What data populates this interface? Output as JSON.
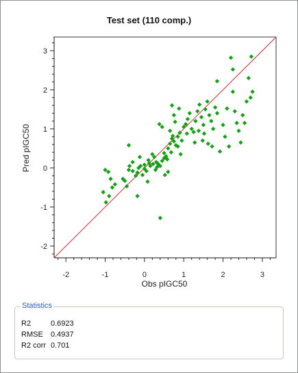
{
  "chart_data": {
    "type": "scatter",
    "title": "Test set (110 comp.)",
    "xlabel": "Obs pIGC50",
    "ylabel": "Pred pIGC50",
    "xlim": [
      -2.3,
      3.35
    ],
    "ylim": [
      -2.3,
      3.35
    ],
    "x_ticks": [
      -2,
      -1,
      0,
      1,
      2,
      3
    ],
    "y_ticks": [
      -2,
      -1,
      0,
      1,
      2,
      3
    ],
    "marker_color": "#14a014",
    "reference_line": {
      "from": [
        -2.3,
        -2.3
      ],
      "to": [
        3.35,
        3.35
      ],
      "color": "#c8282d"
    },
    "points": [
      [
        -1.05,
        -0.62
      ],
      [
        -0.98,
        -0.88
      ],
      [
        -0.9,
        -0.72
      ],
      [
        -0.82,
        -0.5
      ],
      [
        -0.75,
        -0.42
      ],
      [
        -0.86,
        -0.28
      ],
      [
        -0.92,
        -0.1
      ],
      [
        -1.0,
        -0.05
      ],
      [
        -0.45,
        -0.47
      ],
      [
        -0.5,
        -0.33
      ],
      [
        -0.4,
        -0.05
      ],
      [
        -0.38,
        0.05
      ],
      [
        -0.3,
        0.15
      ],
      [
        -0.22,
        -0.2
      ],
      [
        -0.18,
        -0.12
      ],
      [
        -0.15,
        0.0
      ],
      [
        -0.1,
        0.05
      ],
      [
        -0.05,
        -0.18
      ],
      [
        0.0,
        0.08
      ],
      [
        0.05,
        -0.08
      ],
      [
        0.1,
        0.2
      ],
      [
        0.15,
        0.05
      ],
      [
        0.2,
        0.35
      ],
      [
        0.25,
        0.28
      ],
      [
        0.3,
        0.15
      ],
      [
        0.35,
        0.1
      ],
      [
        0.4,
        0.05
      ],
      [
        0.45,
        0.18
      ],
      [
        0.5,
        0.38
      ],
      [
        0.55,
        0.3
      ],
      [
        0.6,
        0.5
      ],
      [
        0.65,
        0.62
      ],
      [
        0.7,
        0.75
      ],
      [
        0.75,
        0.68
      ],
      [
        0.8,
        0.58
      ],
      [
        0.85,
        0.8
      ],
      [
        0.9,
        0.9
      ],
      [
        0.95,
        0.7
      ],
      [
        1.0,
        1.05
      ],
      [
        1.05,
        1.12
      ],
      [
        1.1,
        1.25
      ],
      [
        1.15,
        1.4
      ],
      [
        1.2,
        1.0
      ],
      [
        1.25,
        0.92
      ],
      [
        1.3,
        1.2
      ],
      [
        1.35,
        1.45
      ],
      [
        1.4,
        1.62
      ],
      [
        1.45,
        1.3
      ],
      [
        1.5,
        1.1
      ],
      [
        1.55,
        1.5
      ],
      [
        1.6,
        1.7
      ],
      [
        1.65,
        1.35
      ],
      [
        1.7,
        1.2
      ],
      [
        1.75,
        1.0
      ],
      [
        1.8,
        1.55
      ],
      [
        1.85,
        1.4
      ],
      [
        -0.4,
        0.58
      ],
      [
        -0.55,
        -0.28
      ],
      [
        -0.18,
        -0.72
      ],
      [
        0.08,
        -0.35
      ],
      [
        0.4,
        -1.28
      ],
      [
        0.22,
        0.1
      ],
      [
        0.32,
        0.02
      ],
      [
        0.5,
        0.25
      ],
      [
        0.6,
        -0.1
      ],
      [
        0.72,
        0.82
      ],
      [
        0.78,
        1.18
      ],
      [
        0.88,
        1.52
      ],
      [
        0.75,
        1.35
      ],
      [
        0.7,
        1.6
      ],
      [
        0.38,
        1.12
      ],
      [
        0.45,
        1.05
      ],
      [
        0.65,
        0.95
      ],
      [
        0.85,
        0.55
      ],
      [
        1.08,
        0.88
      ],
      [
        1.28,
        0.65
      ],
      [
        1.52,
        0.88
      ],
      [
        1.48,
        0.7
      ],
      [
        1.62,
        0.62
      ],
      [
        1.72,
        0.55
      ],
      [
        1.38,
        0.95
      ],
      [
        1.92,
        0.42
      ],
      [
        2.0,
        1.1
      ],
      [
        2.05,
        0.8
      ],
      [
        2.1,
        1.52
      ],
      [
        2.15,
        0.55
      ],
      [
        2.25,
        1.95
      ],
      [
        2.3,
        1.45
      ],
      [
        2.35,
        1.15
      ],
      [
        2.4,
        0.95
      ],
      [
        2.45,
        0.65
      ],
      [
        2.5,
        1.35
      ],
      [
        2.55,
        1.15
      ],
      [
        2.6,
        1.7
      ],
      [
        2.65,
        2.3
      ],
      [
        2.7,
        1.8
      ],
      [
        2.72,
        2.85
      ],
      [
        2.75,
        1.95
      ],
      [
        2.2,
        2.82
      ],
      [
        2.25,
        2.52
      ],
      [
        1.85,
        2.22
      ],
      [
        -0.3,
        -0.08
      ],
      [
        -0.12,
        0.28
      ],
      [
        0.0,
        -0.02
      ],
      [
        0.12,
        0.12
      ],
      [
        0.28,
        -0.05
      ],
      [
        0.52,
        -0.18
      ],
      [
        0.58,
        0.22
      ],
      [
        0.68,
        0.4
      ],
      [
        0.92,
        0.35
      ]
    ]
  },
  "statistics": {
    "legend": "Statistics",
    "rows": [
      {
        "label": "R2",
        "value": "0.6923"
      },
      {
        "label": "RMSE",
        "value": "0.4937"
      },
      {
        "label": "R2 corr",
        "value": "0.701"
      }
    ]
  }
}
